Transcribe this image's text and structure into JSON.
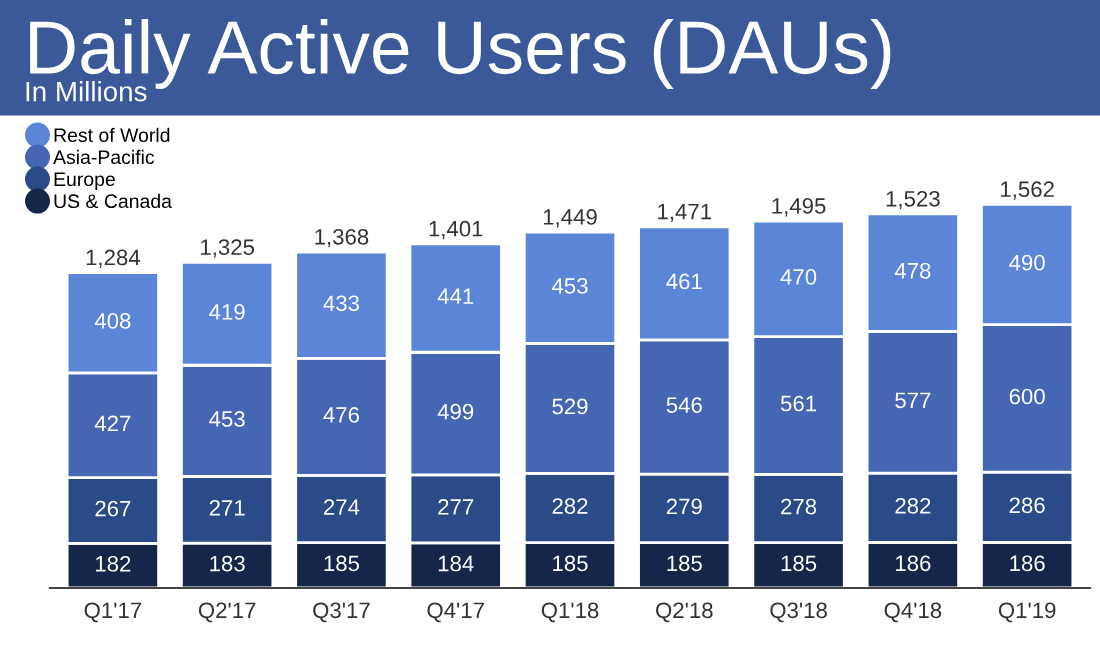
{
  "chart_data": {
    "type": "bar",
    "title": "Daily Active Users (DAUs)",
    "subtitle": "In Millions",
    "categories": [
      "Q1'17",
      "Q2'17",
      "Q3'17",
      "Q4'17",
      "Q1'18",
      "Q2'18",
      "Q3'18",
      "Q4'18",
      "Q1'19"
    ],
    "stacked": true,
    "data_labels": true,
    "legend": "top left",
    "marker": "circle",
    "series": [
      {
        "name": "US & Canada",
        "color": "#16264a",
        "values": [
          182,
          183,
          185,
          184,
          185,
          185,
          185,
          186,
          186
        ]
      },
      {
        "name": "Europe",
        "color": "#2b4a88",
        "values": [
          267,
          271,
          274,
          277,
          282,
          279,
          278,
          282,
          286
        ]
      },
      {
        "name": "Asia-Pacific",
        "color": "#4466b3",
        "values": [
          427,
          453,
          476,
          499,
          529,
          546,
          561,
          577,
          600
        ]
      },
      {
        "name": "Rest of World",
        "color": "#5b86d8",
        "values": [
          408,
          419,
          433,
          441,
          453,
          461,
          470,
          478,
          490
        ]
      }
    ],
    "totals": [
      "1,284",
      "1,325",
      "1,368",
      "1,401",
      "1,449",
      "1,471",
      "1,495",
      "1,523",
      "1,562"
    ]
  }
}
